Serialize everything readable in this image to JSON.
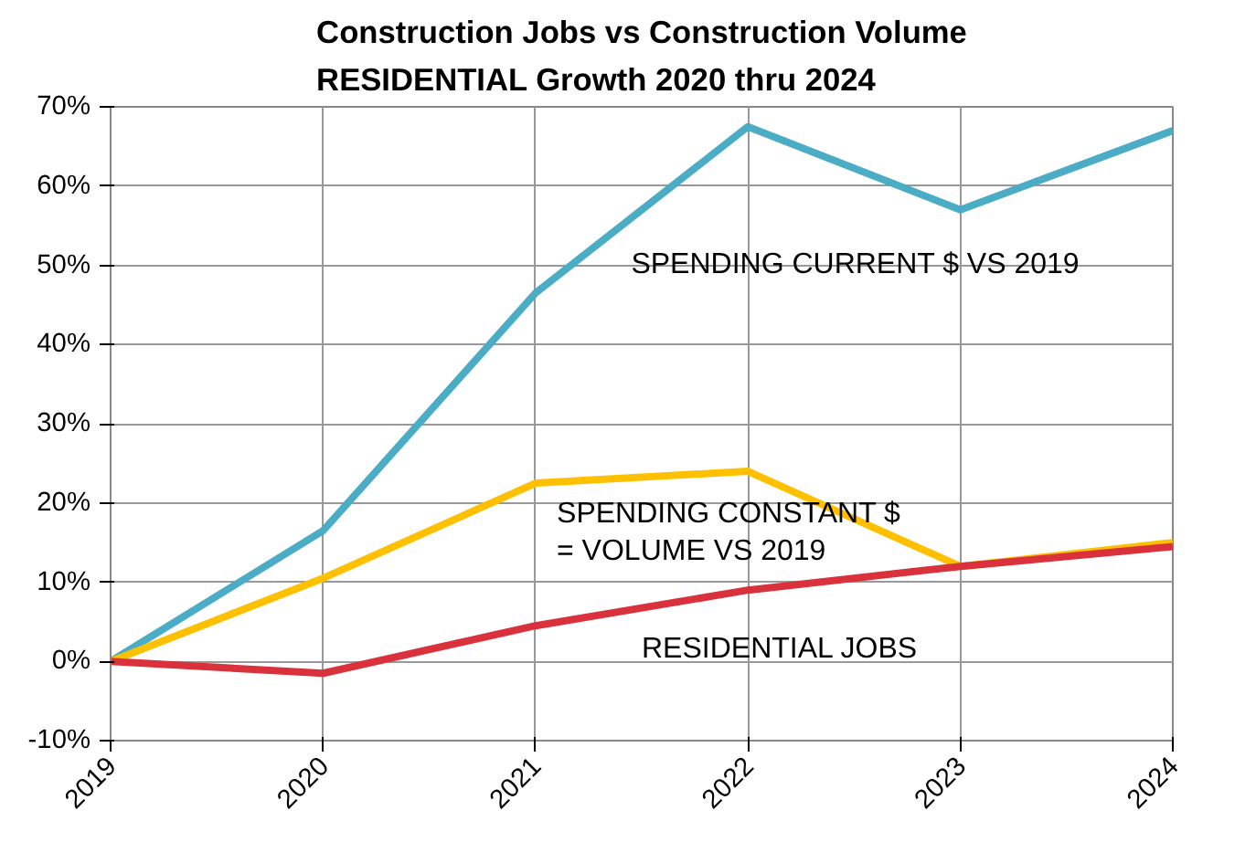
{
  "chart_data": {
    "type": "line",
    "title": "Construction Jobs vs Construction Volume\nRESIDENTIAL Growth 2020 thru 2024",
    "x": [
      2019,
      2020,
      2021,
      2022,
      2023,
      2024
    ],
    "series": [
      {
        "name": "SPENDING CURRENT $ VS 2019",
        "color": "#4bacc6",
        "values": [
          0,
          16.5,
          46.5,
          67.5,
          57,
          67
        ]
      },
      {
        "name": "SPENDING CONSTANT $\n= VOLUME VS 2019",
        "color": "#ffc000",
        "values": [
          0,
          10.5,
          22.5,
          24,
          12,
          15
        ]
      },
      {
        "name": "RESIDENTIAL JOBS",
        "color": "#d9323c",
        "values": [
          0,
          -1.5,
          4.5,
          9,
          12,
          14.5
        ]
      }
    ],
    "xlim": [
      2019,
      2024
    ],
    "xticks": [
      2019,
      2020,
      2021,
      2022,
      2023,
      2024
    ],
    "ylim": [
      -10,
      70
    ],
    "yticks": [
      {
        "value": -10,
        "label": "-10%"
      },
      {
        "value": 0,
        "label": "0%"
      },
      {
        "value": 10,
        "label": "10%"
      },
      {
        "value": 20,
        "label": "20%"
      },
      {
        "value": 30,
        "label": "30%"
      },
      {
        "value": 40,
        "label": "40%"
      },
      {
        "value": 50,
        "label": "50%"
      },
      {
        "value": 60,
        "label": "60%"
      },
      {
        "value": 70,
        "label": "70%"
      }
    ],
    "grid": true,
    "legend": false,
    "marker": "none",
    "line_style": "solid"
  }
}
